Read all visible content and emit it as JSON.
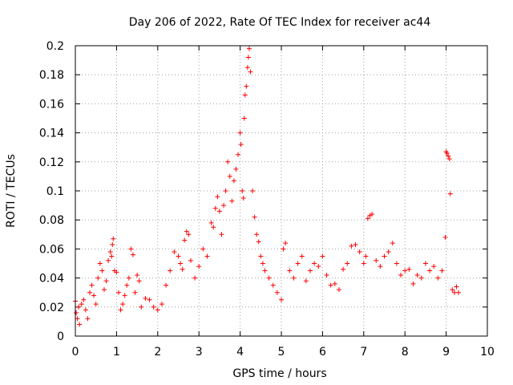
{
  "chart_data": {
    "type": "scatter",
    "title": "Day 206 of 2022, Rate Of TEC Index for receiver ac44",
    "xlabel": "GPS time / hours",
    "ylabel": "ROTI / TECUs",
    "xlim": [
      0,
      10
    ],
    "ylim": [
      0,
      0.2
    ],
    "x_ticks": [
      0,
      1,
      2,
      3,
      4,
      5,
      6,
      7,
      8,
      9,
      10
    ],
    "y_ticks": [
      0,
      0.02,
      0.04,
      0.06,
      0.08,
      0.1,
      0.12,
      0.14,
      0.16,
      0.18,
      0.2
    ],
    "x_tick_labels": [
      "0",
      "1",
      "2",
      "3",
      "4",
      "5",
      "6",
      "7",
      "8",
      "9",
      "10"
    ],
    "y_tick_labels": [
      "0",
      "0.02",
      "0.04",
      "0.06",
      "0.08",
      "0.1",
      "0.12",
      "0.14",
      "0.16",
      "0.18",
      "0.2"
    ],
    "grid": true,
    "marker": "+",
    "color": "#ff0000",
    "series": [
      {
        "name": "ROTI",
        "x": [
          0.0,
          0.02,
          0.05,
          0.08,
          0.1,
          0.15,
          0.2,
          0.25,
          0.3,
          0.35,
          0.4,
          0.45,
          0.5,
          0.55,
          0.6,
          0.65,
          0.7,
          0.75,
          0.8,
          0.85,
          0.88,
          0.9,
          0.92,
          0.95,
          1.0,
          1.05,
          1.1,
          1.15,
          1.2,
          1.25,
          1.3,
          1.35,
          1.4,
          1.45,
          1.5,
          1.55,
          1.6,
          1.7,
          1.8,
          1.9,
          2.0,
          2.1,
          2.2,
          2.3,
          2.4,
          2.5,
          2.55,
          2.6,
          2.65,
          2.7,
          2.75,
          2.8,
          2.9,
          3.0,
          3.1,
          3.2,
          3.3,
          3.35,
          3.4,
          3.45,
          3.5,
          3.55,
          3.6,
          3.65,
          3.7,
          3.75,
          3.8,
          3.85,
          3.9,
          3.95,
          4.0,
          4.02,
          4.05,
          4.08,
          4.1,
          4.12,
          4.15,
          4.18,
          4.2,
          4.22,
          4.25,
          4.3,
          4.35,
          4.4,
          4.45,
          4.5,
          4.55,
          4.6,
          4.7,
          4.8,
          4.9,
          5.0,
          5.05,
          5.1,
          5.2,
          5.3,
          5.4,
          5.5,
          5.6,
          5.7,
          5.8,
          5.9,
          6.0,
          6.1,
          6.2,
          6.3,
          6.4,
          6.5,
          6.6,
          6.7,
          6.8,
          6.9,
          7.0,
          7.05,
          7.1,
          7.15,
          7.2,
          7.3,
          7.4,
          7.5,
          7.6,
          7.7,
          7.8,
          7.9,
          8.0,
          8.1,
          8.2,
          8.3,
          8.4,
          8.5,
          8.6,
          8.7,
          8.8,
          8.9,
          8.98,
          9.0,
          9.02,
          9.05,
          9.08,
          9.1,
          9.15,
          9.2,
          9.25,
          9.3
        ],
        "y": [
          0.024,
          0.016,
          0.012,
          0.02,
          0.008,
          0.022,
          0.025,
          0.018,
          0.012,
          0.03,
          0.035,
          0.028,
          0.022,
          0.04,
          0.05,
          0.045,
          0.032,
          0.038,
          0.052,
          0.058,
          0.055,
          0.063,
          0.067,
          0.045,
          0.044,
          0.03,
          0.018,
          0.022,
          0.028,
          0.035,
          0.04,
          0.06,
          0.056,
          0.03,
          0.042,
          0.038,
          0.02,
          0.026,
          0.025,
          0.02,
          0.018,
          0.022,
          0.035,
          0.045,
          0.058,
          0.055,
          0.05,
          0.046,
          0.066,
          0.072,
          0.07,
          0.052,
          0.04,
          0.048,
          0.06,
          0.055,
          0.078,
          0.075,
          0.088,
          0.096,
          0.086,
          0.07,
          0.09,
          0.1,
          0.12,
          0.11,
          0.093,
          0.107,
          0.115,
          0.125,
          0.14,
          0.132,
          0.1,
          0.095,
          0.15,
          0.166,
          0.172,
          0.185,
          0.192,
          0.198,
          0.182,
          0.1,
          0.082,
          0.07,
          0.065,
          0.055,
          0.05,
          0.045,
          0.04,
          0.035,
          0.03,
          0.025,
          0.06,
          0.064,
          0.045,
          0.04,
          0.05,
          0.055,
          0.038,
          0.045,
          0.05,
          0.048,
          0.055,
          0.042,
          0.035,
          0.036,
          0.032,
          0.046,
          0.05,
          0.062,
          0.063,
          0.058,
          0.05,
          0.055,
          0.081,
          0.083,
          0.084,
          0.052,
          0.048,
          0.055,
          0.058,
          0.064,
          0.05,
          0.042,
          0.045,
          0.046,
          0.036,
          0.042,
          0.04,
          0.05,
          0.045,
          0.048,
          0.04,
          0.045,
          0.068,
          0.127,
          0.126,
          0.124,
          0.122,
          0.098,
          0.032,
          0.03,
          0.034,
          0.03
        ]
      }
    ]
  }
}
